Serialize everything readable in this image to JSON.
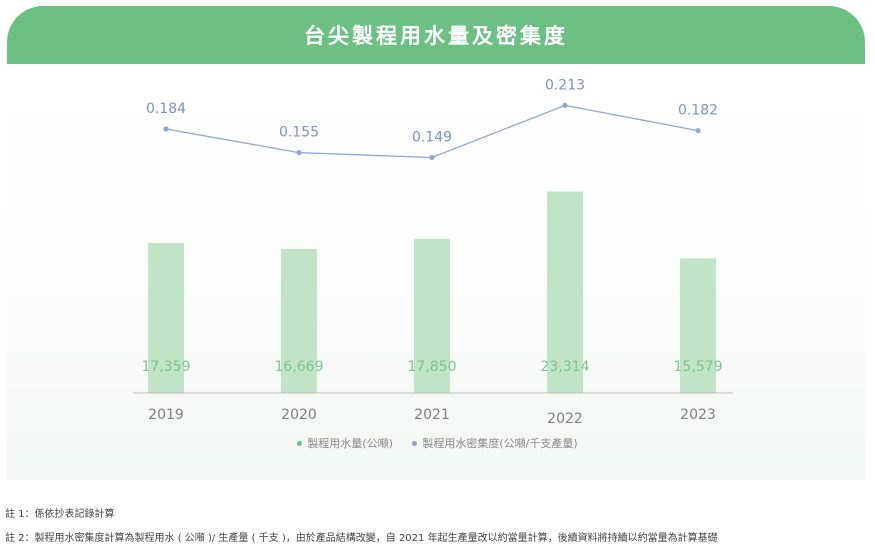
{
  "header": {
    "title": "台尖製程用水量及密集度"
  },
  "chart_data": {
    "type": "bar",
    "categories": [
      "2019",
      "2020",
      "2021",
      "2022",
      "2023"
    ],
    "series": [
      {
        "name": "製程用水量(公噸)",
        "type": "bar",
        "values": [
          17359,
          16669,
          17850,
          23314,
          15579
        ],
        "labels": [
          "17,359",
          "16,669",
          "17,850",
          "23,314",
          "15,579"
        ],
        "color": "#c1e3c6"
      },
      {
        "name": "製程用水密集度(公噸/千支產量)",
        "type": "line",
        "values": [
          0.184,
          0.155,
          0.149,
          0.213,
          0.182
        ],
        "labels": [
          "0.184",
          "0.155",
          "0.149",
          "0.213",
          "0.182"
        ],
        "color": "#8ea6d8"
      }
    ],
    "legend_position": "bottom-center",
    "grid": false
  },
  "legend": {
    "items": [
      {
        "label": "製程用水量(公噸)",
        "color": "#6cc083"
      },
      {
        "label": "製程用水密集度(公噸/千支產量)",
        "color": "#8ea6d8"
      }
    ]
  },
  "notes": [
    "註 1：係依抄表記錄計算",
    "註 2：製程用水密集度計算為製程用水 ( 公噸 )/ 生產量 ( 千支 )，由於產品結構改變，自 2021 年起生產量改以約當量計算，後續資料將持續以約當量為計算基礎"
  ]
}
